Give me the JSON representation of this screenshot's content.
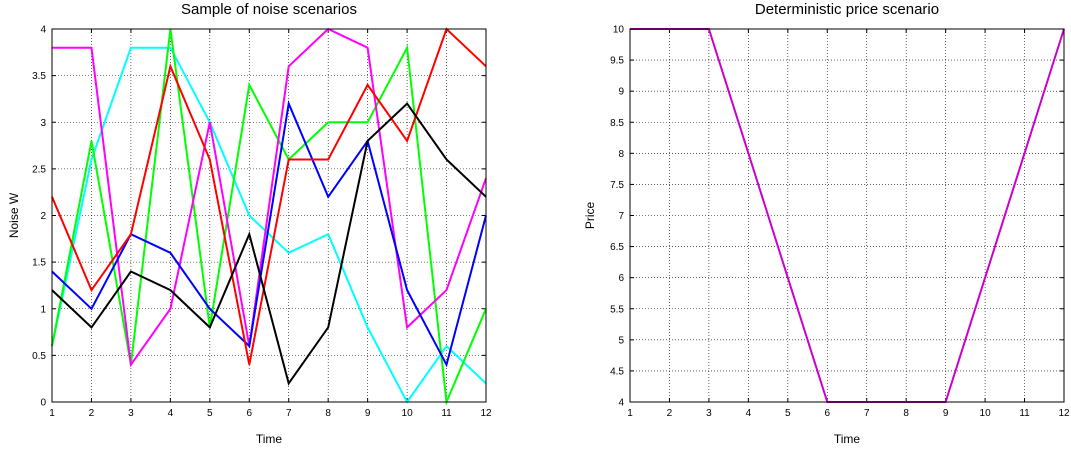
{
  "chart_data": [
    {
      "type": "line",
      "title": "Sample of noise scenarios",
      "xlabel": "Time",
      "ylabel": "Noise W",
      "xlim": [
        1,
        12
      ],
      "ylim": [
        0,
        4
      ],
      "x": [
        1,
        2,
        3,
        4,
        5,
        6,
        7,
        8,
        9,
        10,
        11,
        12
      ],
      "xticks": [
        "1",
        "2",
        "3",
        "4",
        "5",
        "6",
        "7",
        "8",
        "9",
        "10",
        "11",
        "12"
      ],
      "yticks": [
        "0",
        "0.5",
        "1",
        "1.5",
        "2",
        "2.5",
        "3",
        "3.5",
        "4"
      ],
      "grid": true,
      "series": [
        {
          "color": "#00ffff",
          "values": [
            0.6,
            2.6,
            3.8,
            3.8,
            3.0,
            2.0,
            1.6,
            1.8,
            0.8,
            0.0,
            0.6,
            0.2
          ]
        },
        {
          "color": "#00ff00",
          "values": [
            0.6,
            2.8,
            0.4,
            4.0,
            0.8,
            3.4,
            2.6,
            3.0,
            3.0,
            3.8,
            0.0,
            1.0
          ]
        },
        {
          "color": "#ff00ff",
          "values": [
            3.8,
            3.8,
            0.4,
            1.0,
            3.0,
            0.6,
            3.6,
            4.0,
            3.8,
            0.8,
            1.2,
            2.4
          ]
        },
        {
          "color": "#0000ff",
          "values": [
            1.4,
            1.0,
            1.8,
            1.6,
            1.0,
            0.6,
            3.2,
            2.2,
            2.8,
            1.2,
            0.4,
            2.0
          ]
        },
        {
          "color": "#ff0000",
          "values": [
            2.2,
            1.2,
            1.8,
            3.6,
            2.6,
            0.4,
            2.6,
            2.6,
            3.4,
            2.8,
            4.0,
            3.6
          ]
        },
        {
          "color": "#000000",
          "values": [
            1.2,
            0.8,
            1.4,
            1.2,
            0.8,
            1.8,
            0.2,
            0.8,
            2.8,
            3.2,
            2.6,
            2.2
          ]
        }
      ]
    },
    {
      "type": "line",
      "title": "Deterministic price scenario",
      "xlabel": "Time",
      "ylabel": "Price",
      "xlim": [
        1,
        12
      ],
      "ylim": [
        4,
        10
      ],
      "x": [
        1,
        2,
        3,
        4,
        5,
        6,
        7,
        8,
        9,
        10,
        11,
        12
      ],
      "xticks": [
        "1",
        "2",
        "3",
        "4",
        "5",
        "6",
        "7",
        "8",
        "9",
        "10",
        "11",
        "12"
      ],
      "yticks": [
        "4",
        "4.5",
        "5",
        "5.5",
        "6",
        "6.5",
        "7",
        "7.5",
        "8",
        "8.5",
        "9",
        "9.5",
        "10"
      ],
      "grid": true,
      "series": [
        {
          "color": "#cc00cc",
          "values": [
            10,
            10,
            10,
            8,
            6,
            4,
            4,
            4,
            4,
            6,
            8,
            10
          ]
        }
      ]
    }
  ]
}
